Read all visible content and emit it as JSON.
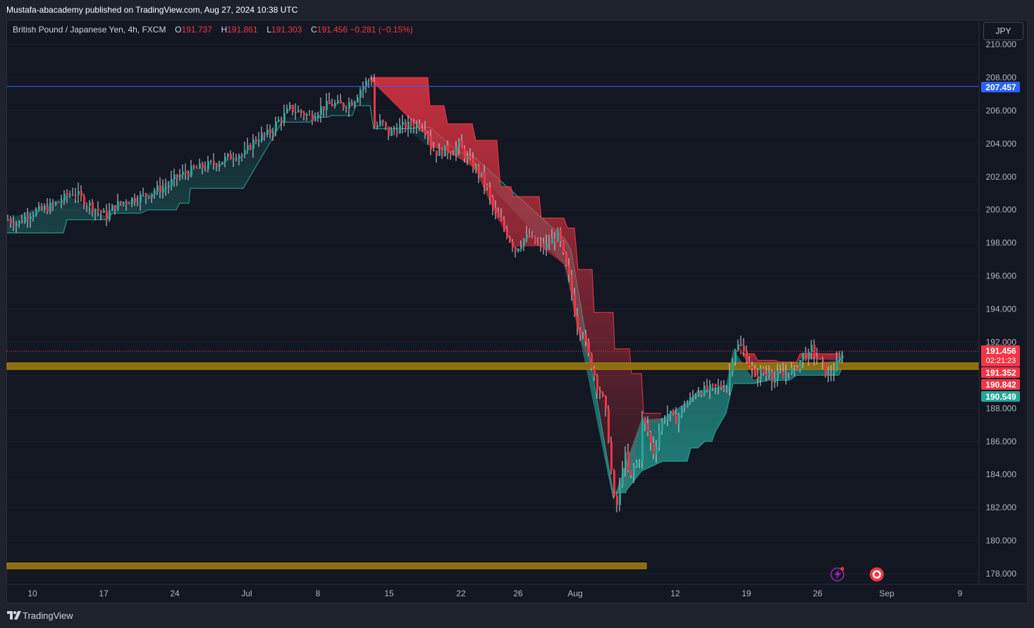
{
  "header": {
    "published_by": "Mustafa-abacademy published on TradingView.com, Aug 27, 2024 10:38 UTC"
  },
  "legend": {
    "symbol": "British Pound / Japanese Yen, 4h, FXCM",
    "open_label": "O",
    "open": "191.737",
    "high_label": "H",
    "high": "191.861",
    "low_label": "L",
    "low": "191.303",
    "close_label": "C",
    "close": "191.456",
    "change": "−0.281 (−0.15%)"
  },
  "currency_button": "JPY",
  "price_badges": {
    "resistance": "207.457",
    "last_price": "191.456",
    "countdown": "02:21:23",
    "level_a": "191.352",
    "level_b": "190.842",
    "level_c": "190.549"
  },
  "footer": {
    "brand": "TradingView"
  },
  "icons": [
    "tradingview-logo-icon",
    "lightning-icon",
    "target-icon"
  ],
  "colors": {
    "bull": "#26a69a",
    "bear": "#f23645",
    "resistance_line": "#2962ff",
    "zone": "#b8860b",
    "background": "#131722"
  },
  "chart_data": {
    "type": "candlestick",
    "symbol": "GBPJPY",
    "timeframe": "4h",
    "ylim": [
      177.5,
      210.5
    ],
    "y_ticks": [
      "210.000",
      "208.000",
      "206.000",
      "204.000",
      "202.000",
      "200.000",
      "198.000",
      "196.000",
      "194.000",
      "192.000",
      "190.000",
      "188.000",
      "186.000",
      "184.000",
      "182.000",
      "180.000",
      "178.000"
    ],
    "x_tick_labels": [
      "10",
      "17",
      "24",
      "Jul",
      "8",
      "15",
      "22",
      "26",
      "Aug",
      "12",
      "19",
      "26",
      "Sep",
      "9"
    ],
    "horizontal_lines": [
      {
        "price": 207.457,
        "style": "solid",
        "color": "#2962ff"
      },
      {
        "price": 191.456,
        "style": "dotted",
        "color": "#f23645"
      }
    ],
    "zones": [
      {
        "from": 190.35,
        "to": 190.75,
        "extent": "full"
      },
      {
        "from": 178.3,
        "to": 178.65,
        "extent": "partial"
      }
    ],
    "close_path": [
      [
        0,
        199.4
      ],
      [
        15,
        199.2
      ],
      [
        30,
        199.8
      ],
      [
        50,
        200.0
      ],
      [
        70,
        200.4
      ],
      [
        85,
        200.9
      ],
      [
        95,
        201.1
      ],
      [
        105,
        200.6
      ],
      [
        120,
        200.2
      ],
      [
        130,
        199.9
      ],
      [
        140,
        199.6
      ],
      [
        150,
        200.2
      ],
      [
        165,
        200.5
      ],
      [
        180,
        200.7
      ],
      [
        195,
        200.9
      ],
      [
        210,
        201.2
      ],
      [
        225,
        201.4
      ],
      [
        240,
        202.0
      ],
      [
        255,
        202.3
      ],
      [
        270,
        202.5
      ],
      [
        285,
        202.7
      ],
      [
        300,
        202.9
      ],
      [
        315,
        203.2
      ],
      [
        325,
        203.4
      ],
      [
        335,
        203.3
      ],
      [
        345,
        204.0
      ],
      [
        355,
        204.4
      ],
      [
        370,
        204.6
      ],
      [
        380,
        205.2
      ],
      [
        390,
        205.6
      ],
      [
        400,
        206.1
      ],
      [
        415,
        205.9
      ],
      [
        430,
        205.6
      ],
      [
        445,
        206.2
      ],
      [
        460,
        206.4
      ],
      [
        475,
        206.3
      ],
      [
        490,
        206.6
      ],
      [
        500,
        207.3
      ],
      [
        510,
        207.8
      ],
      [
        517,
        207.9
      ],
      [
        520,
        205.0
      ],
      [
        530,
        205.3
      ],
      [
        540,
        204.6
      ],
      [
        555,
        205.0
      ],
      [
        570,
        205.1
      ],
      [
        585,
        205.2
      ],
      [
        595,
        204.8
      ],
      [
        600,
        203.8
      ],
      [
        610,
        203.4
      ],
      [
        620,
        203.6
      ],
      [
        630,
        203.5
      ],
      [
        640,
        203.9
      ],
      [
        650,
        203.2
      ],
      [
        660,
        202.6
      ],
      [
        670,
        202.2
      ],
      [
        680,
        201.2
      ],
      [
        690,
        199.8
      ],
      [
        700,
        199.2
      ],
      [
        710,
        198.4
      ],
      [
        720,
        197.6
      ],
      [
        730,
        198.2
      ],
      [
        740,
        198.4
      ],
      [
        750,
        197.9
      ],
      [
        760,
        197.7
      ],
      [
        770,
        198.1
      ],
      [
        780,
        198.5
      ],
      [
        785,
        197.8
      ],
      [
        790,
        196.7
      ],
      [
        795,
        196.1
      ],
      [
        800,
        194.9
      ],
      [
        805,
        193.6
      ],
      [
        810,
        192.6
      ],
      [
        815,
        192.9
      ],
      [
        820,
        191.8
      ],
      [
        825,
        191.0
      ],
      [
        830,
        190.4
      ],
      [
        835,
        189.5
      ],
      [
        840,
        189.0
      ],
      [
        845,
        188.4
      ],
      [
        850,
        187.2
      ],
      [
        855,
        184.7
      ],
      [
        858,
        183.2
      ],
      [
        862,
        181.7
      ],
      [
        866,
        182.6
      ],
      [
        870,
        183.8
      ],
      [
        874,
        185.5
      ],
      [
        878,
        184.7
      ],
      [
        882,
        183.6
      ],
      [
        886,
        184.0
      ],
      [
        890,
        184.9
      ],
      [
        895,
        184.4
      ],
      [
        900,
        187.3
      ],
      [
        905,
        186.9
      ],
      [
        910,
        186.3
      ],
      [
        915,
        185.2
      ],
      [
        920,
        185.9
      ],
      [
        925,
        186.9
      ],
      [
        930,
        187.4
      ],
      [
        935,
        187.7
      ],
      [
        940,
        187.6
      ],
      [
        945,
        187.3
      ],
      [
        950,
        187.4
      ],
      [
        955,
        187.9
      ],
      [
        960,
        188.2
      ],
      [
        965,
        188.4
      ],
      [
        970,
        188.6
      ],
      [
        975,
        188.9
      ],
      [
        980,
        189.1
      ],
      [
        990,
        189.1
      ],
      [
        1000,
        189.2
      ],
      [
        1010,
        189.3
      ],
      [
        1020,
        189.4
      ],
      [
        1025,
        190.4
      ],
      [
        1030,
        191.6
      ],
      [
        1035,
        191.8
      ],
      [
        1040,
        191.7
      ],
      [
        1045,
        191.3
      ],
      [
        1050,
        190.9
      ],
      [
        1055,
        190.4
      ],
      [
        1060,
        189.7
      ],
      [
        1065,
        190.1
      ],
      [
        1070,
        190.3
      ],
      [
        1075,
        189.9
      ],
      [
        1080,
        190.4
      ],
      [
        1085,
        189.7
      ],
      [
        1090,
        189.9
      ],
      [
        1095,
        190.1
      ],
      [
        1100,
        189.8
      ],
      [
        1105,
        190.3
      ],
      [
        1110,
        190.4
      ],
      [
        1115,
        190.1
      ],
      [
        1120,
        190.6
      ],
      [
        1125,
        191.0
      ],
      [
        1130,
        191.4
      ],
      [
        1135,
        191.0
      ],
      [
        1140,
        191.6
      ],
      [
        1145,
        191.2
      ],
      [
        1150,
        190.9
      ],
      [
        1155,
        190.6
      ],
      [
        1160,
        190.2
      ],
      [
        1165,
        189.9
      ],
      [
        1170,
        190.3
      ],
      [
        1175,
        190.6
      ],
      [
        1180,
        190.9
      ],
      [
        1185,
        191.5
      ]
    ],
    "support_band": [
      [
        0,
        198.6
      ],
      [
        80,
        198.6
      ],
      [
        85,
        199.4
      ],
      [
        140,
        199.4
      ],
      [
        150,
        199.8
      ],
      [
        190,
        199.8
      ],
      [
        200,
        200.0
      ],
      [
        240,
        200.0
      ],
      [
        245,
        200.4
      ],
      [
        258,
        200.4
      ],
      [
        260,
        201.3
      ],
      [
        300,
        201.3
      ],
      [
        335,
        201.3
      ],
      [
        390,
        205.3
      ],
      [
        430,
        205.3
      ],
      [
        435,
        205.6
      ],
      [
        455,
        205.6
      ],
      [
        460,
        205.7
      ],
      [
        490,
        205.7
      ],
      [
        495,
        206.3
      ],
      [
        515,
        206.3
      ],
      [
        520,
        204.9
      ],
      [
        560,
        204.9
      ],
      [
        600,
        205.0
      ],
      [
        640,
        203.5
      ],
      [
        660,
        203.3
      ],
      [
        790,
        198.3
      ],
      [
        800,
        197.6
      ],
      [
        860,
        182.9
      ],
      [
        878,
        182.9
      ],
      [
        878,
        183.0
      ],
      [
        900,
        184.2
      ],
      [
        930,
        184.8
      ],
      [
        965,
        184.8
      ],
      [
        970,
        185.6
      ],
      [
        980,
        185.6
      ],
      [
        990,
        186.0
      ],
      [
        1000,
        186.0
      ],
      [
        1005,
        186.6
      ],
      [
        1020,
        187.7
      ],
      [
        1025,
        188.6
      ],
      [
        1030,
        189.5
      ],
      [
        1060,
        189.5
      ],
      [
        1080,
        189.7
      ],
      [
        1110,
        189.7
      ],
      [
        1120,
        190.0
      ],
      [
        1180,
        190.0
      ],
      [
        1185,
        190.5
      ]
    ],
    "resistance_band": [
      [
        515,
        208.0
      ],
      [
        597,
        208.0
      ],
      [
        600,
        206.3
      ],
      [
        620,
        206.3
      ],
      [
        625,
        205.2
      ],
      [
        660,
        205.2
      ],
      [
        665,
        204.2
      ],
      [
        695,
        204.2
      ],
      [
        700,
        201.4
      ],
      [
        715,
        201.4
      ],
      [
        718,
        200.8
      ],
      [
        755,
        200.8
      ],
      [
        758,
        199.5
      ],
      [
        790,
        199.5
      ],
      [
        795,
        198.9
      ],
      [
        805,
        198.9
      ],
      [
        810,
        196.4
      ],
      [
        830,
        196.4
      ],
      [
        833,
        193.8
      ],
      [
        860,
        193.8
      ],
      [
        862,
        191.6
      ],
      [
        883,
        191.6
      ],
      [
        886,
        190.1
      ],
      [
        900,
        190.1
      ],
      [
        903,
        187.7
      ],
      [
        928,
        187.7
      ]
    ],
    "mixed_band": [
      [
        1040,
        191.3
      ],
      [
        1060,
        191.3
      ],
      [
        1065,
        190.9
      ],
      [
        1090,
        190.9
      ],
      [
        1095,
        190.8
      ],
      [
        1120,
        190.8
      ],
      [
        1125,
        191.3
      ],
      [
        1180,
        191.3
      ]
    ]
  }
}
